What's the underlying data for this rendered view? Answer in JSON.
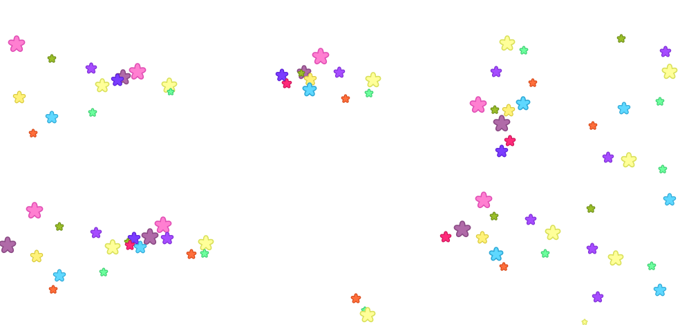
{
  "palette": {
    "pink": "#ff7fd1",
    "olive": "#9bbf2a",
    "violet": "#a64cff",
    "yellow": "#fff27a",
    "pale-yellow": "#ffff99",
    "sky": "#5fd8ff",
    "orange": "#ff6f3c",
    "mint": "#6dff9e",
    "mauve": "#b06aa8",
    "crimson": "#ff2a7a",
    "purple": "#7a3cff"
  },
  "stroke_palette": {
    "pink": "#e04fb4",
    "olive": "#6f8f1a",
    "violet": "#7e2fd6",
    "yellow": "#d8c93a",
    "pale-yellow": "#d9e05a",
    "sky": "#2ea8d6",
    "orange": "#d84a1a",
    "mint": "#3fcf73",
    "mauve": "#8a4a84",
    "crimson": "#cc1458",
    "purple": "#5a1ed6"
  },
  "shape_icon": "flower-star-icon"
}
